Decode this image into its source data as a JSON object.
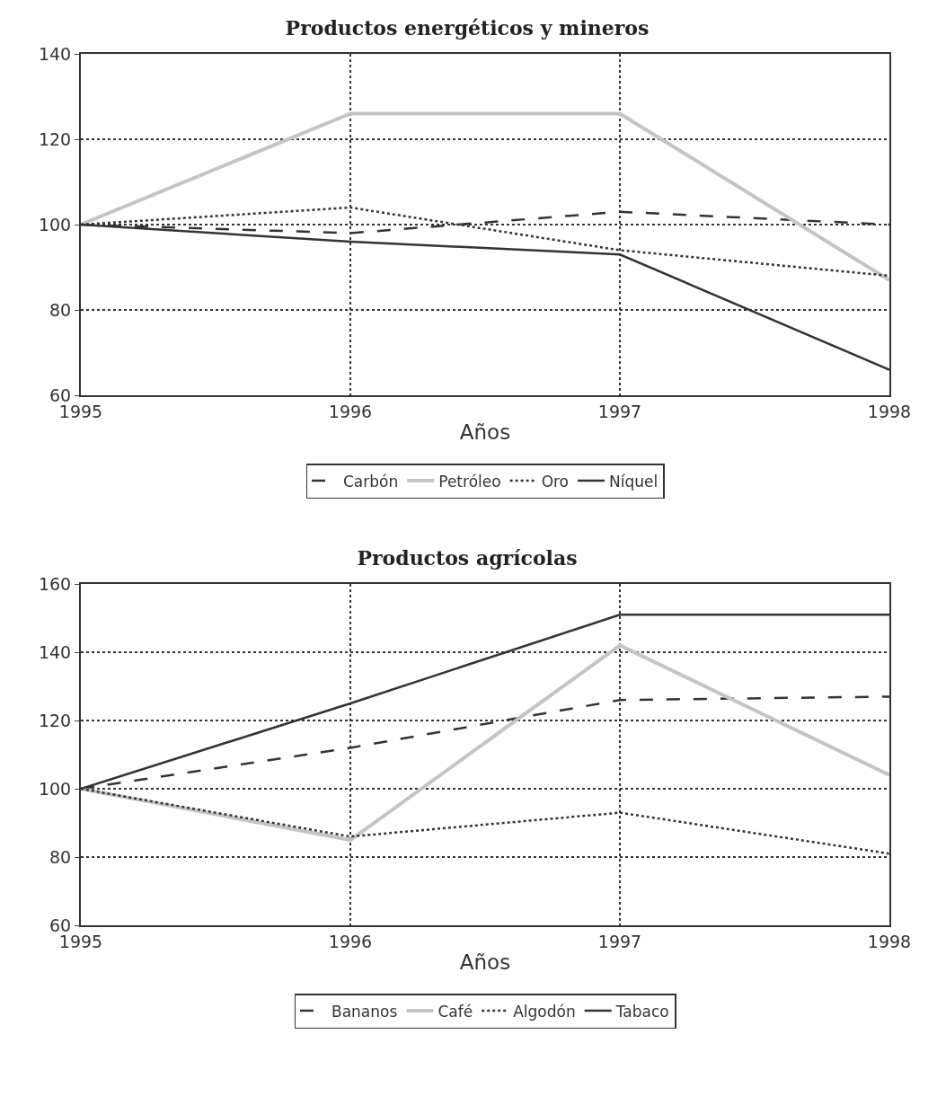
{
  "chart_data": [
    {
      "type": "line",
      "title": "Productos energéticos y mineros",
      "xlabel": "Años",
      "x": [
        1995,
        1996,
        1997,
        1998
      ],
      "xlim": [
        1995,
        1998
      ],
      "xticks": [
        1995,
        1996,
        1997,
        1998
      ],
      "ylim": [
        60,
        140
      ],
      "yticks": [
        60,
        80,
        100,
        120,
        140
      ],
      "grid": true,
      "legend": "bottom",
      "marker": "none",
      "series": [
        {
          "name": "Carbón",
          "color": "#333333",
          "line_style": "dashed",
          "values": [
            100,
            98,
            103,
            100
          ]
        },
        {
          "name": "Petróleo",
          "color": "#c4c4c4",
          "line_style": "solid",
          "values": [
            100,
            126,
            126,
            87
          ]
        },
        {
          "name": "Oro",
          "color": "#333333",
          "line_style": "dotted",
          "values": [
            100,
            104,
            94,
            88
          ]
        },
        {
          "name": "Níquel",
          "color": "#333333",
          "line_style": "solid",
          "values": [
            100,
            96,
            93,
            66
          ]
        }
      ]
    },
    {
      "type": "line",
      "title": "Productos agrícolas",
      "xlabel": "Años",
      "x": [
        1995,
        1996,
        1997,
        1998
      ],
      "xlim": [
        1995,
        1998
      ],
      "xticks": [
        1995,
        1996,
        1997,
        1998
      ],
      "ylim": [
        60,
        160
      ],
      "yticks": [
        60,
        80,
        100,
        120,
        140,
        160
      ],
      "grid": true,
      "legend": "bottom",
      "marker": "none",
      "series": [
        {
          "name": "Bananos",
          "color": "#333333",
          "line_style": "dashed",
          "values": [
            100,
            112,
            126,
            127
          ]
        },
        {
          "name": "Café",
          "color": "#c4c4c4",
          "line_style": "solid",
          "values": [
            100,
            85,
            142,
            104
          ]
        },
        {
          "name": "Algodón",
          "color": "#333333",
          "line_style": "dotted",
          "values": [
            100,
            86,
            93,
            81
          ]
        },
        {
          "name": "Tabaco",
          "color": "#333333",
          "line_style": "solid",
          "values": [
            100,
            125,
            151,
            151
          ]
        }
      ]
    }
  ]
}
